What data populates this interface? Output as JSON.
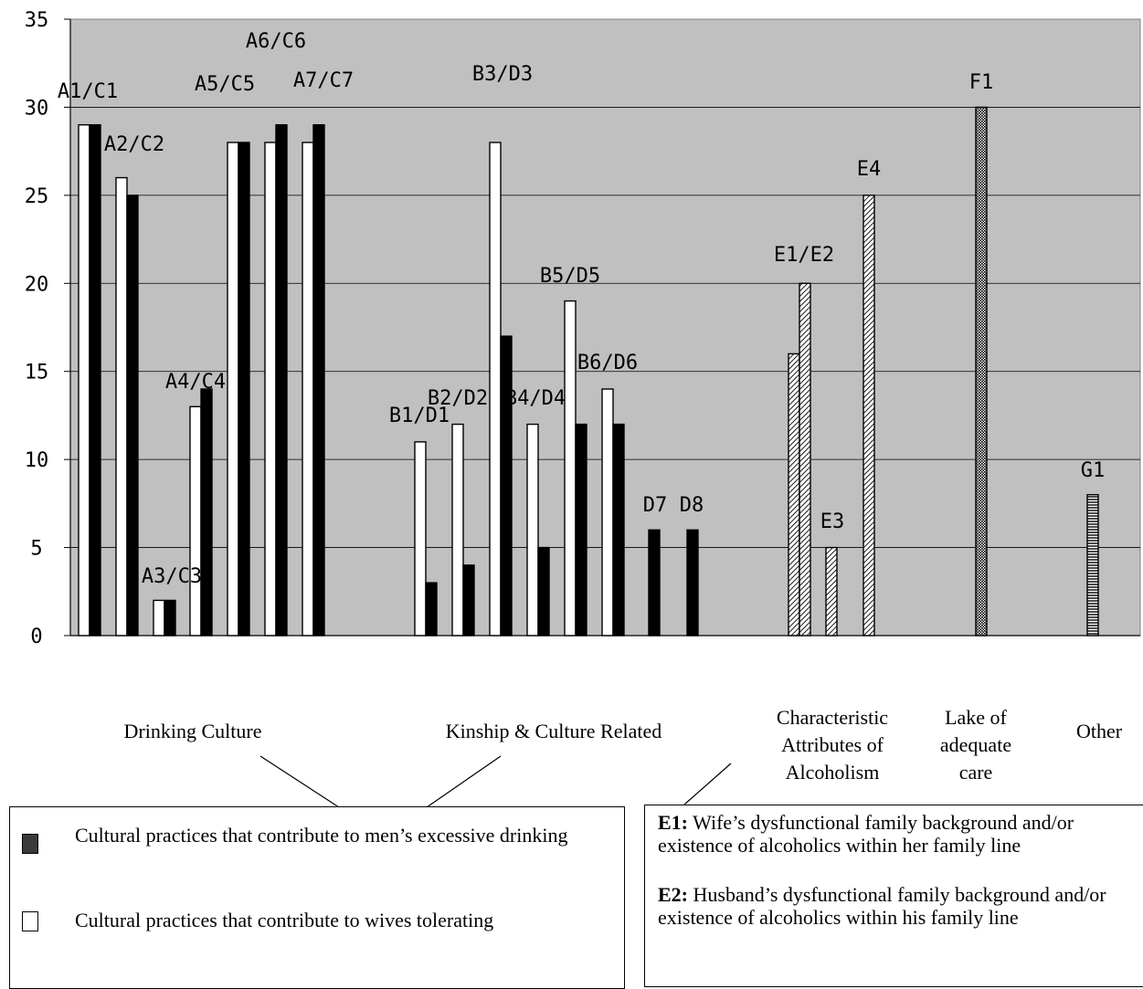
{
  "chart_data": {
    "type": "bar",
    "ylim": [
      0,
      35
    ],
    "yticks": [
      0,
      5,
      10,
      15,
      20,
      25,
      30,
      35
    ],
    "grid": "horizontal",
    "background": "#c0c0c0",
    "groups": [
      {
        "label": "Drinking Culture",
        "items": [
          {
            "label": "A1/C1",
            "wives": 29,
            "men": 29
          },
          {
            "label": "A2/C2",
            "wives": 26,
            "men": 25
          },
          {
            "label": "A3/C3",
            "wives": 2,
            "men": 2
          },
          {
            "label": "A4/C4",
            "wives": 13,
            "men": 14
          },
          {
            "label": "A5/C5",
            "wives": 28,
            "men": 28
          },
          {
            "label": "A6/C6",
            "wives": 28,
            "men": 29
          },
          {
            "label": "A7/C7",
            "wives": 28,
            "men": 29
          }
        ]
      },
      {
        "label": "Kinship & Culture Related",
        "items": [
          {
            "label": "B1/D1",
            "wives": 11,
            "men": 3
          },
          {
            "label": "B2/D2",
            "wives": 12,
            "men": 4
          },
          {
            "label": "B3/D3",
            "wives": 28,
            "men": 17
          },
          {
            "label": "B4/D4",
            "wives": 12,
            "men": 5
          },
          {
            "label": "B5/D5",
            "wives": 19,
            "men": 12
          },
          {
            "label": "B6/D6",
            "wives": 14,
            "men": 12
          },
          {
            "label": "D7",
            "men": 6
          },
          {
            "label": "D8",
            "men": 6
          }
        ]
      },
      {
        "label": "Characteristic Attributes of Alcoholism",
        "items": [
          {
            "label": "E1/E2",
            "values": [
              16,
              20
            ]
          },
          {
            "label": "E3",
            "values": [
              5
            ]
          },
          {
            "label": "E4",
            "values": [
              25
            ]
          }
        ]
      },
      {
        "label": "Lake of adequate care",
        "items": [
          {
            "label": "F1",
            "values": [
              30
            ]
          }
        ]
      },
      {
        "label": "Other",
        "items": [
          {
            "label": "G1",
            "values": [
              8
            ]
          }
        ]
      }
    ]
  },
  "group_labels": {
    "drinking": "Drinking Culture",
    "kinship": "Kinship & Culture Related",
    "char_1": "Characteristic",
    "char_2": "Attributes of",
    "char_3": "Alcoholism",
    "lake_1": "Lake of",
    "lake_2": "adequate",
    "lake_3": "care",
    "other": "Other"
  },
  "legend": {
    "men": "Cultural practices that contribute to men’s excessive drinking",
    "wives": "Cultural practices that contribute to wives tolerating",
    "men_color": "#000000",
    "wives_color": "#ffffff"
  },
  "definitions": {
    "e1_key": "E1:",
    "e1_text": "Wife’s dysfunctional family background and/or existence of alcoholics within her family line",
    "e2_key": "E2:",
    "e2_text": "Husband’s dysfunctional family background and/or existence of alcoholics within his family line"
  }
}
